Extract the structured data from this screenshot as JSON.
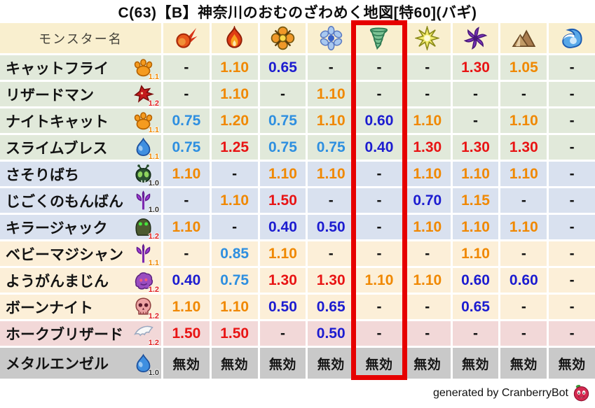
{
  "chart_data": {
    "type": "table",
    "title": "C(63)【B】神奈川のおむのざわめく地図[特60](バギ)",
    "name_header": "モンスター名",
    "element_columns": [
      {
        "icon": "fireball"
      },
      {
        "icon": "flame"
      },
      {
        "icon": "cross-burst"
      },
      {
        "icon": "snowflake"
      },
      {
        "icon": "tornado",
        "highlighted": true
      },
      {
        "icon": "spark"
      },
      {
        "icon": "pinwheel"
      },
      {
        "icon": "mountain"
      },
      {
        "icon": "wave"
      }
    ],
    "highlighted_column_index": 4,
    "rows": [
      {
        "name": "キャットフライ",
        "icon": "paw",
        "level": "1.1",
        "level_color": "orange",
        "group": "green",
        "values": [
          "-",
          "1.10",
          "0.65",
          "-",
          "-",
          "-",
          "1.30",
          "1.05",
          "-"
        ]
      },
      {
        "name": "リザードマン",
        "icon": "dragon",
        "level": "1.2",
        "level_color": "red",
        "group": "green",
        "values": [
          "-",
          "1.10",
          "-",
          "1.10",
          "-",
          "-",
          "-",
          "-",
          "-"
        ]
      },
      {
        "name": "ナイトキャット",
        "icon": "paw",
        "level": "1.1",
        "level_color": "orange",
        "group": "green",
        "values": [
          "0.75",
          "1.20",
          "0.75",
          "1.10",
          "0.60",
          "1.10",
          "-",
          "1.10",
          "-"
        ]
      },
      {
        "name": "スライムブレス",
        "icon": "slime",
        "level": "1.1",
        "level_color": "orange",
        "group": "green",
        "values": [
          "0.75",
          "1.25",
          "0.75",
          "0.75",
          "0.40",
          "1.30",
          "1.30",
          "1.30",
          "-"
        ]
      },
      {
        "name": "さそりばち",
        "icon": "bug",
        "level": "1.0",
        "level_color": "black",
        "group": "blue",
        "values": [
          "1.10",
          "-",
          "1.10",
          "1.10",
          "-",
          "1.10",
          "1.10",
          "1.10",
          "-"
        ]
      },
      {
        "name": "じごくのもんばん",
        "icon": "trident",
        "level": "1.0",
        "level_color": "black",
        "group": "blue",
        "values": [
          "-",
          "1.10",
          "1.50",
          "-",
          "-",
          "0.70",
          "1.15",
          "-",
          "-"
        ]
      },
      {
        "name": "キラージャック",
        "icon": "helmet",
        "level": "1.2",
        "level_color": "red",
        "group": "blue",
        "values": [
          "1.10",
          "-",
          "0.40",
          "0.50",
          "-",
          "1.10",
          "1.10",
          "1.10",
          "-"
        ]
      },
      {
        "name": "ベビーマジシャン",
        "icon": "trident",
        "level": "1.1",
        "level_color": "orange",
        "group": "cream",
        "values": [
          "-",
          "0.85",
          "1.10",
          "-",
          "-",
          "-",
          "1.10",
          "-",
          "-"
        ]
      },
      {
        "name": "ようがんまじん",
        "icon": "blob",
        "level": "1.2",
        "level_color": "red",
        "group": "cream",
        "values": [
          "0.40",
          "0.75",
          "1.30",
          "1.30",
          "1.10",
          "1.10",
          "0.60",
          "0.60",
          "-"
        ]
      },
      {
        "name": "ボーンナイト",
        "icon": "skull",
        "level": "1.2",
        "level_color": "red",
        "group": "cream",
        "values": [
          "1.10",
          "1.10",
          "0.50",
          "0.65",
          "-",
          "-",
          "0.65",
          "-",
          "-"
        ]
      },
      {
        "name": "ホークブリザード",
        "icon": "wing",
        "level": "1.2",
        "level_color": "red",
        "group": "pink",
        "values": [
          "1.50",
          "1.50",
          "-",
          "0.50",
          "-",
          "-",
          "-",
          "-",
          "-"
        ]
      },
      {
        "name": "メタルエンゼル",
        "icon": "slime",
        "level": "1.0",
        "level_color": "black",
        "group": "gray",
        "values": [
          "無効",
          "無効",
          "無効",
          "無効",
          "無効",
          "無効",
          "無効",
          "無効",
          "無効"
        ]
      }
    ]
  },
  "footer": {
    "credit": "generated by CranberryBot",
    "icon": "cranberry"
  },
  "colors": {
    "highlight_box": "#e60000",
    "header_bg": "#f9efcf",
    "row_green": "#e1e9da",
    "row_blue": "#d9e1ef",
    "row_cream": "#fcefd8",
    "row_pink": "#f2d8d8",
    "row_gray": "#c9c9c9",
    "value_orange": "#f08800",
    "value_red": "#e81414",
    "value_light_blue": "#2e8fe0",
    "value_dark_blue": "#1c1cd0",
    "value_neutral": "#141414",
    "level_orange": "#f08800",
    "level_red": "#e02020",
    "level_black": "#303030"
  }
}
